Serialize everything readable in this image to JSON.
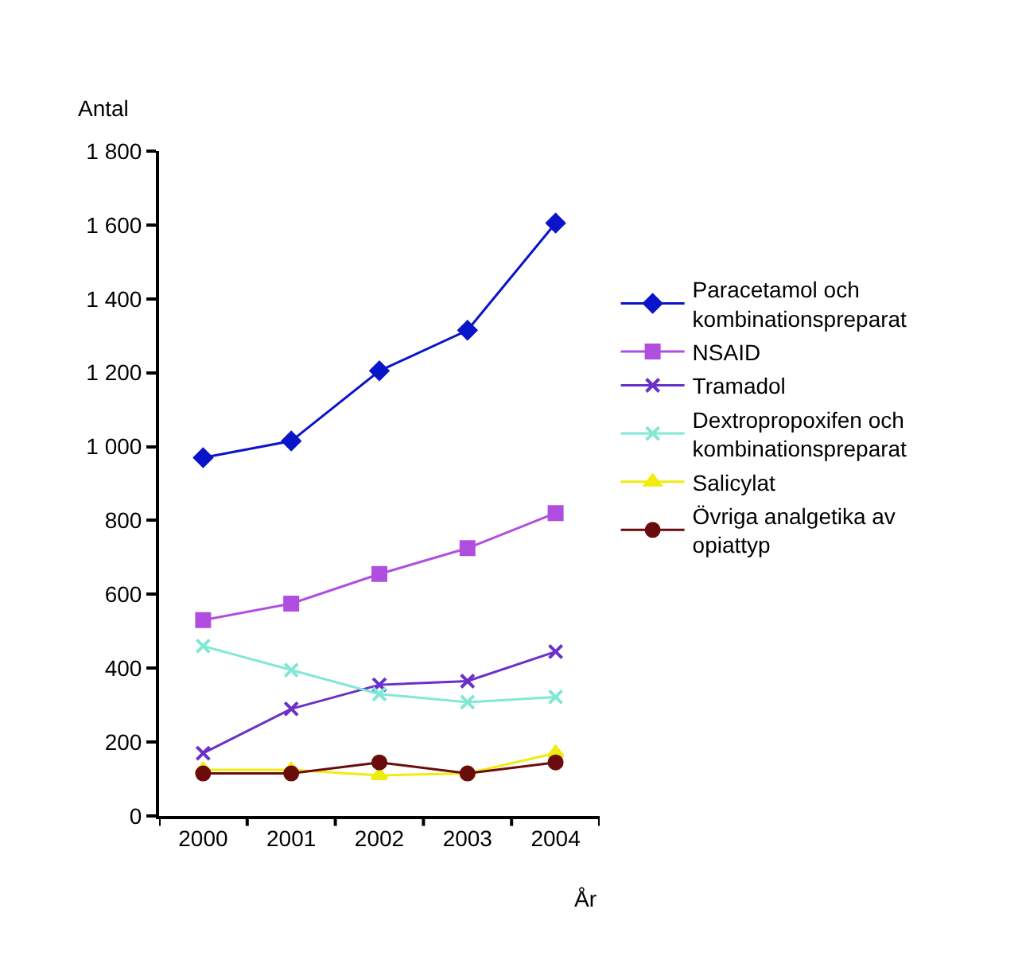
{
  "chart_data": {
    "type": "line",
    "ylabel": "Antal",
    "xlabel": "År",
    "categories": [
      "2000",
      "2001",
      "2002",
      "2003",
      "2004"
    ],
    "ylim": [
      0,
      1800
    ],
    "yticks": [
      0,
      {
        "value": 200,
        "label": "200"
      },
      {
        "value": 400,
        "label": "400"
      },
      {
        "value": 600,
        "label": "600"
      },
      {
        "value": 800,
        "label": "800"
      },
      {
        "value": 1000,
        "label": "1 000"
      },
      {
        "value": 1200,
        "label": "1 200"
      },
      {
        "value": 1400,
        "label": "1 400"
      },
      {
        "value": 1600,
        "label": "1 600"
      },
      {
        "value": 1800,
        "label": "1 800"
      }
    ],
    "legend": "right",
    "line_style": "solid",
    "series": [
      {
        "name": "Paracetamol och kombinationspreparat",
        "color": "#0a14c8",
        "marker": "diamond",
        "values": [
          970,
          1015,
          1205,
          1315,
          1605
        ]
      },
      {
        "name": "NSAID",
        "color": "#b04ee0",
        "marker": "square",
        "values": [
          530,
          575,
          655,
          725,
          820
        ]
      },
      {
        "name": "Tramadol",
        "color": "#6a30c8",
        "marker": "cross",
        "values": [
          170,
          290,
          355,
          365,
          445
        ]
      },
      {
        "name": "Dextropropoxifen och kombinationspreparat",
        "color": "#80e8d4",
        "marker": "cross",
        "values": [
          460,
          395,
          330,
          308,
          322
        ]
      },
      {
        "name": "Salicylat",
        "color": "#f0ec10",
        "marker": "triangle",
        "values": [
          125,
          125,
          110,
          115,
          170
        ]
      },
      {
        "name": "Övriga analgetika av opiattyp",
        "color": "#6b0c0c",
        "marker": "circle",
        "values": [
          115,
          115,
          145,
          115,
          145
        ]
      }
    ]
  }
}
